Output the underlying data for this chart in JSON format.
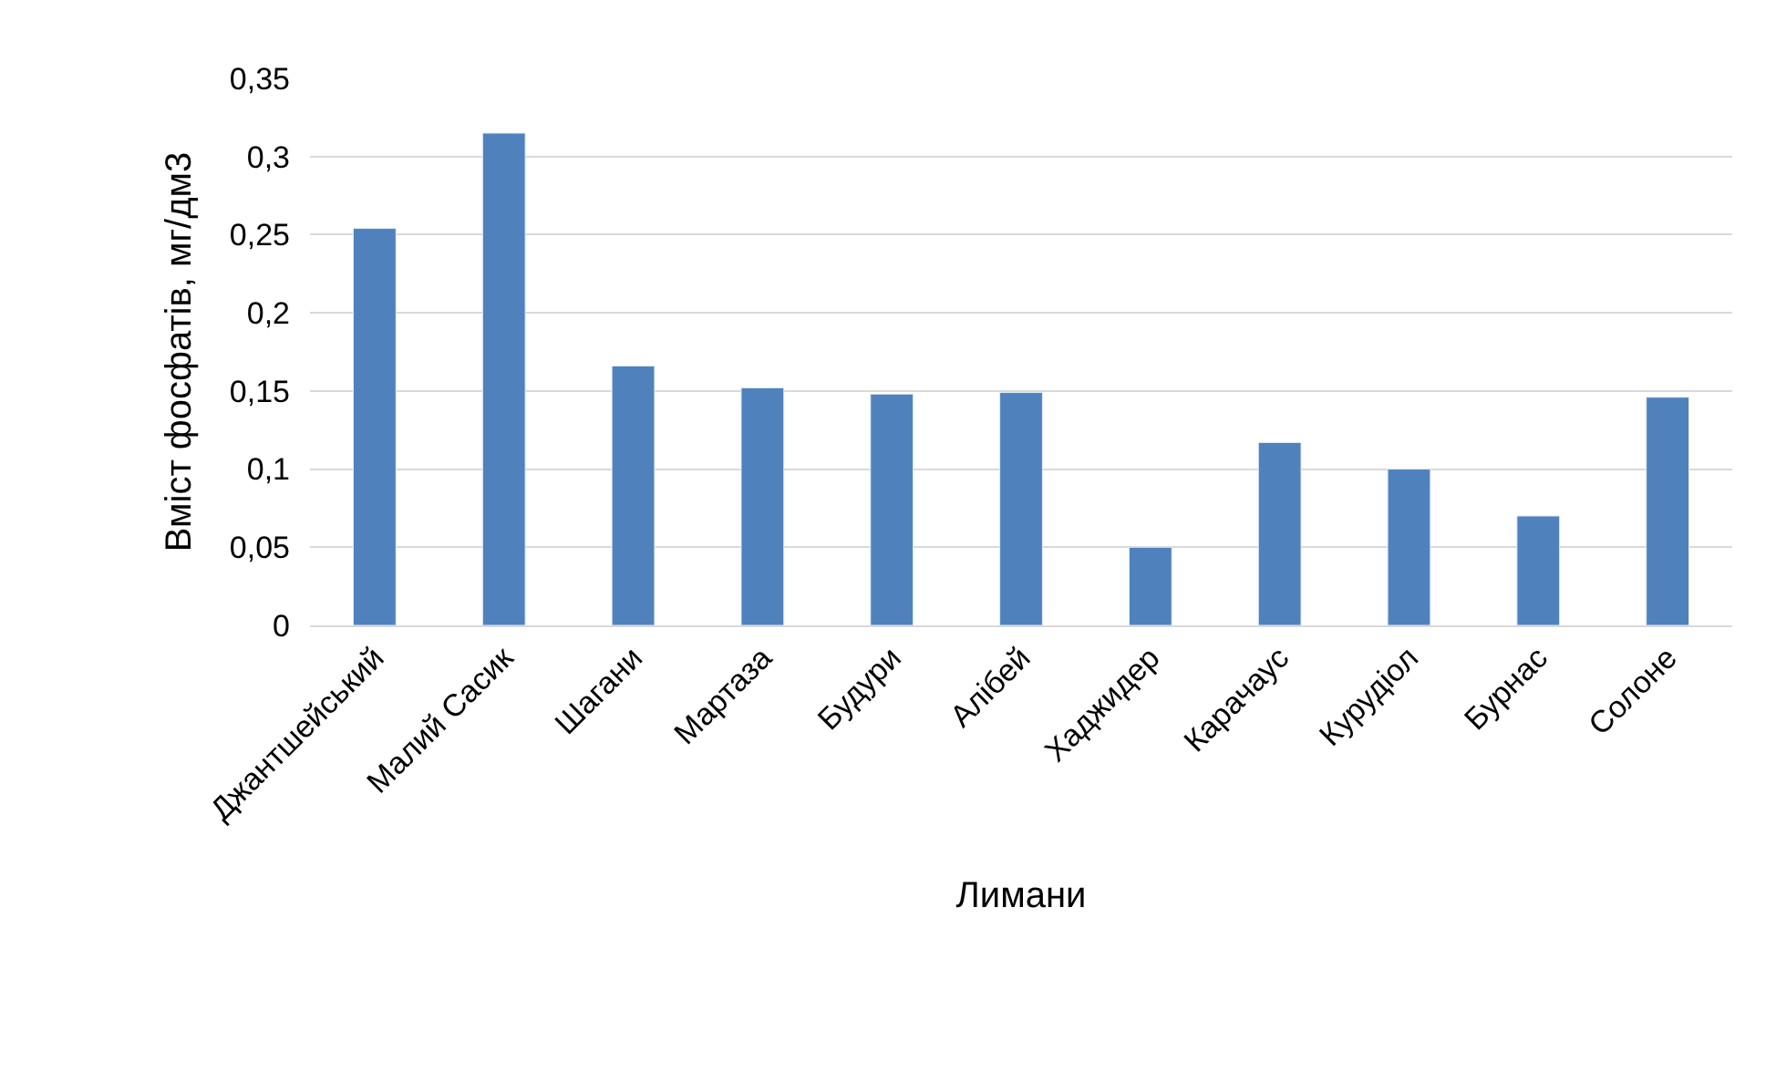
{
  "chart_data": {
    "type": "bar",
    "xlabel": "Лимани",
    "ylabel": "Вміст фосфатів, мг/дм3",
    "categories": [
      "Джантшейський",
      "Малий Сасик",
      "Шагани",
      "Мартаза",
      "Будури",
      "Алібей",
      "Хаджидер",
      "Карачаус",
      "Курудіол",
      "Бурнас",
      "Солоне"
    ],
    "values": [
      0.254,
      0.315,
      0.166,
      0.152,
      0.148,
      0.149,
      0.05,
      0.117,
      0.1,
      0.07,
      0.146
    ],
    "color": "#4f81bd",
    "ylim": [
      0,
      0.35
    ],
    "yticks": [
      {
        "value": 0,
        "label": "0"
      },
      {
        "value": 0.05,
        "label": "0,05"
      },
      {
        "value": 0.1,
        "label": "0,1"
      },
      {
        "value": 0.15,
        "label": "0,15"
      },
      {
        "value": 0.2,
        "label": "0,2"
      },
      {
        "value": 0.25,
        "label": "0,25"
      },
      {
        "value": 0.3,
        "label": "0,3"
      },
      {
        "value": 0.35,
        "label": "0,35"
      }
    ],
    "grid": "y",
    "legend": false
  }
}
